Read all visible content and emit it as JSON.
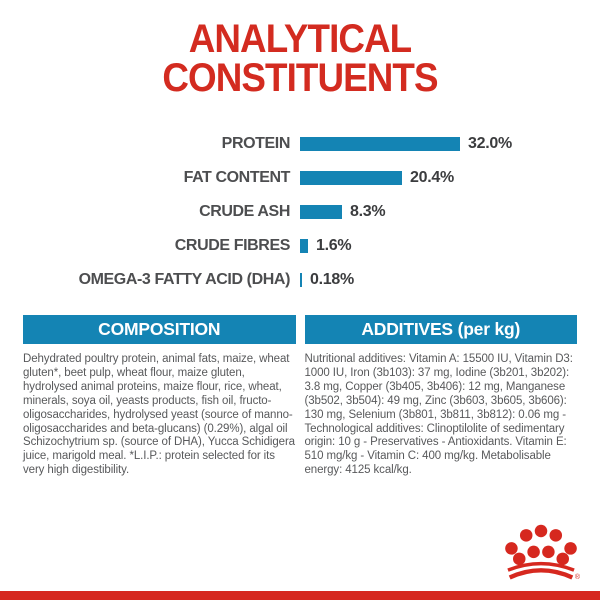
{
  "title": {
    "line1": "ANALYTICAL",
    "line2": "CONSTITUENTS"
  },
  "chart_data": {
    "type": "bar",
    "orientation": "horizontal",
    "title": "ANALYTICAL CONSTITUENTS",
    "categories": [
      "PROTEIN",
      "FAT CONTENT",
      "CRUDE ASH",
      "CRUDE FIBRES",
      "OMEGA-3 FATTY ACID (DHA)"
    ],
    "values": [
      32.0,
      20.4,
      8.3,
      1.6,
      0.18
    ],
    "value_labels": [
      "32.0%",
      "20.4%",
      "8.3%",
      "1.6%",
      "0.18%"
    ],
    "unit": "%",
    "xlim": [
      0,
      32
    ],
    "grid": false,
    "legend": false,
    "bar_color": "#1484b4"
  },
  "sections": {
    "composition": {
      "heading": "COMPOSITION",
      "body": "Dehydrated poultry protein, animal fats, maize, wheat gluten*, beet pulp, wheat flour, maize gluten, hydrolysed animal proteins, maize flour, rice, wheat, minerals, soya oil, yeasts products, fish oil, fructo-oligosaccharides, hydrolysed yeast (source of manno-oligosaccharides and beta-glucans) (0.29%), algal oil Schizochytrium sp. (source of DHA), Yucca Schidigera juice, marigold meal. *L.I.P.: protein selected for its very high digestibility."
    },
    "additives": {
      "heading": "ADDITIVES (per kg)",
      "body": "Nutritional additives: Vitamin A: 15500 IU, Vitamin D3: 1000 IU, Iron (3b103): 37 mg, Iodine (3b201, 3b202): 3.8 mg, Copper (3b405, 3b406): 12 mg, Manganese (3b502, 3b504): 49 mg, Zinc (3b603, 3b605, 3b606): 130 mg, Selenium (3b801, 3b811, 3b812): 0.06 mg - Technological additives: Clinoptilolite of sedimentary origin: 10 g - Preservatives - Antioxidants. Vitamin E: 510 mg/kg - Vitamin C: 400 mg/kg. Metabolisable energy: 4125 kcal/kg."
    }
  },
  "footer": {
    "brand_logo": "royal-canin-crown",
    "registered_mark": "®"
  },
  "colors": {
    "brand_red": "#d6281f",
    "title_red": "#d32b20",
    "accent_blue": "#1484b4",
    "label_gray": "#4d4e50",
    "body_gray": "#58595b"
  }
}
